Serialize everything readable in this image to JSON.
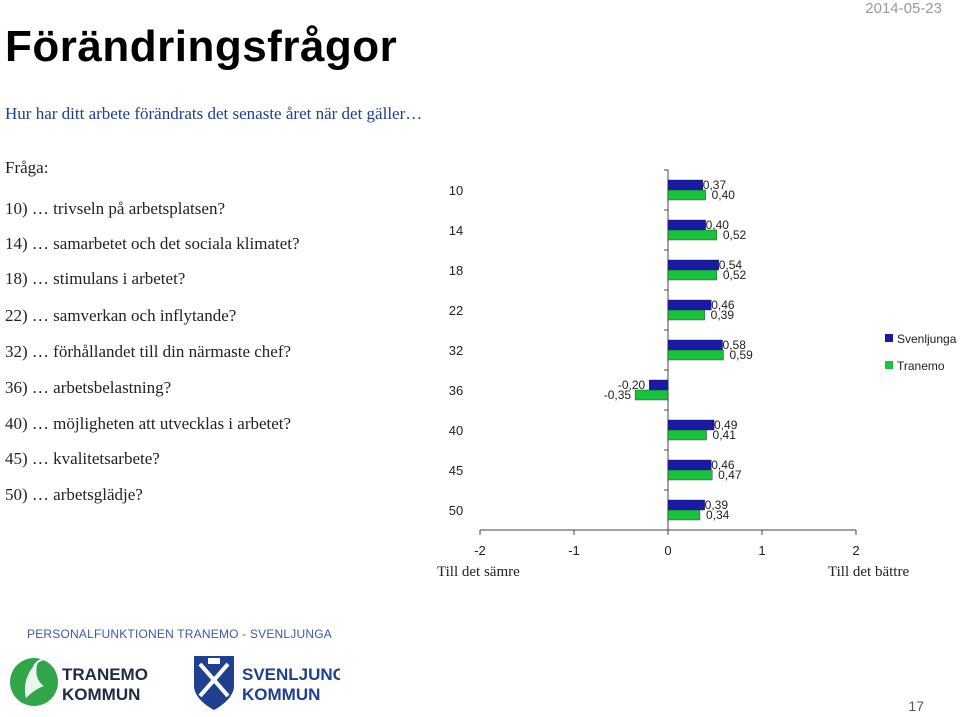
{
  "header": {
    "date": "2014-05-23",
    "title": "Förändringsfrågor",
    "subtitle": "Hur har ditt arbete förändrats det senaste året när det gäller…"
  },
  "questions": {
    "label": "Fråga:",
    "items": [
      "10)  … trivseln på arbetsplatsen?",
      "14)  … samarbetet och det sociala klimatet?",
      "18)  … stimulans i arbetet?",
      "22)  … samverkan och inflytande?",
      "32)  … förhållandet till din närmaste chef?",
      "36)  … arbetsbelastning?",
      "40)  … möjligheten att utvecklas i arbetet?",
      "45)  … kvalitetsarbete?",
      "50)  … arbetsglädje?"
    ]
  },
  "axis": {
    "left_label": "Till det sämre",
    "right_label": "Till det bättre"
  },
  "footer": {
    "text": "PERSONALFUNKTIONEN TRANEMO - SVENLJUNGA",
    "logo_tranemo": "TRANEMO KOMMUN",
    "logo_svenljunga": "SVENLJUNGA KOMMUN",
    "page_number": "17"
  },
  "colors": {
    "svenljunga": "#1a1aa6",
    "tranemo": "#19c23c"
  },
  "chart_data": {
    "type": "bar",
    "orientation": "horizontal",
    "categories": [
      "10",
      "14",
      "18",
      "22",
      "32",
      "36",
      "40",
      "45",
      "50"
    ],
    "series": [
      {
        "name": "Svenljunga",
        "values": [
          0.37,
          0.4,
          0.54,
          0.46,
          0.58,
          -0.2,
          0.49,
          0.46,
          0.39
        ],
        "labels": [
          "0,37",
          "0,40",
          "0,54",
          "0,46",
          "0,58",
          "-0,20",
          "0,49",
          "0,46",
          "0,39"
        ]
      },
      {
        "name": "Tranemo",
        "values": [
          0.4,
          0.52,
          0.52,
          0.39,
          0.59,
          -0.35,
          0.41,
          0.47,
          0.34
        ],
        "labels": [
          "0,40",
          "0,52",
          "0,52",
          "0,39",
          "0,59",
          "-0,35",
          "0,41",
          "0,47",
          "0,34"
        ]
      }
    ],
    "xlim": [
      -2,
      2
    ],
    "xticks": [
      "-2",
      "-1",
      "0",
      "1",
      "2"
    ],
    "grid": false,
    "legend": "right"
  }
}
